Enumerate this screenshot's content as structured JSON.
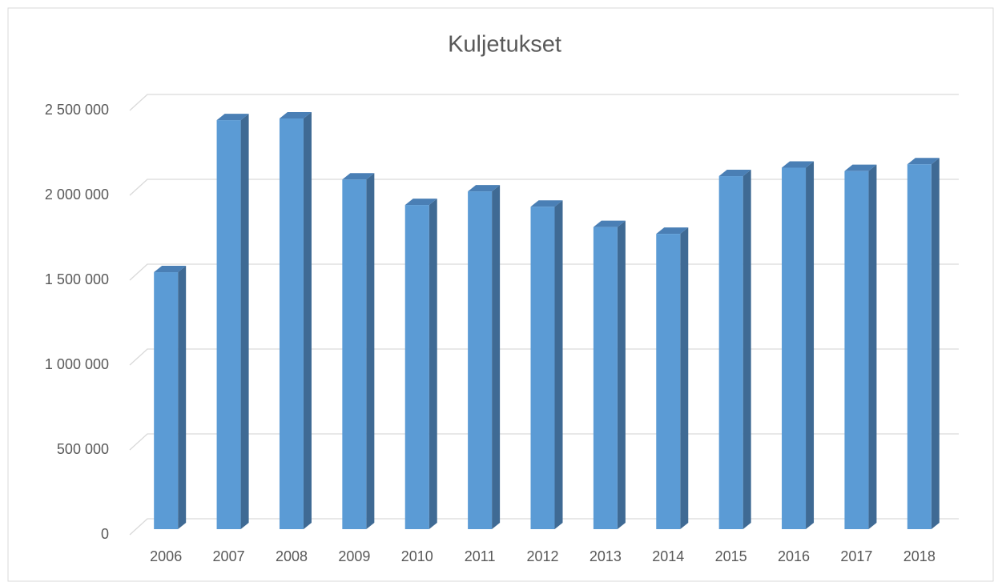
{
  "chart_data": {
    "type": "bar3d",
    "title": "Kuljetukset",
    "categories": [
      "2006",
      "2007",
      "2008",
      "2009",
      "2010",
      "2011",
      "2012",
      "2013",
      "2014",
      "2015",
      "2016",
      "2017",
      "2018"
    ],
    "values": [
      1514000,
      2410000,
      2420000,
      2060000,
      1910000,
      1990000,
      1900000,
      1780000,
      1740000,
      2080000,
      2130000,
      2110000,
      2150000
    ],
    "color": "#5b9bd5",
    "ylim": [
      0,
      2500000
    ],
    "yticks": [
      0,
      {
        "value": 500000,
        "label": "500 000"
      },
      {
        "value": 1000000,
        "label": "1 000 000"
      },
      {
        "value": 1500000,
        "label": "1 500 000"
      },
      {
        "value": 2000000,
        "label": "2 000 000"
      },
      {
        "value": 2500000,
        "label": "2 500 000"
      }
    ],
    "grid": true
  }
}
